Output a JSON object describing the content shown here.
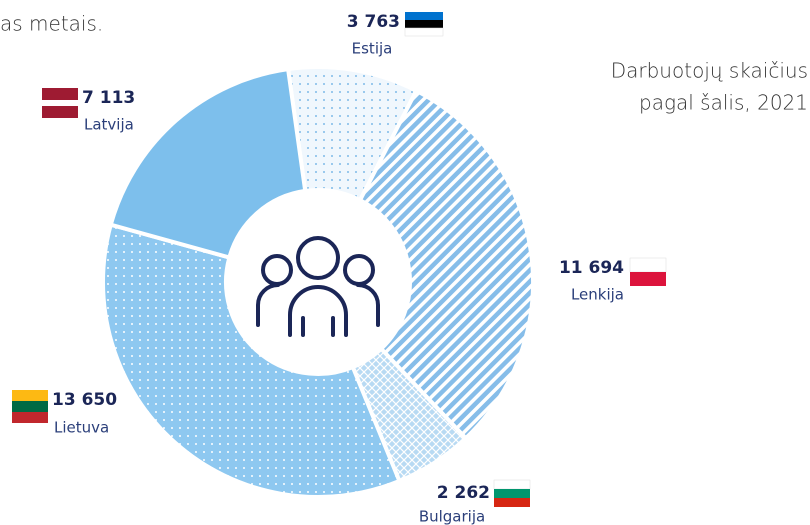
{
  "chart_data": {
    "type": "donut",
    "caption": "as metais.",
    "title": [
      "Darbuotojų skaičius",
      "pagal šalis, 2021"
    ],
    "categories": [
      "Estija",
      "Lenkija",
      "Bulgarija",
      "Lietuva",
      "Latvija"
    ],
    "values": [
      3763,
      11694,
      2262,
      13650,
      7113
    ],
    "value_labels": [
      "3 763",
      "11 694",
      "2 262",
      "13 650",
      "7 113"
    ],
    "colors": [
      "#f0f7fd",
      "#86bde9",
      "#b8daf3",
      "#8ec8f0",
      "#7dbfec"
    ]
  }
}
